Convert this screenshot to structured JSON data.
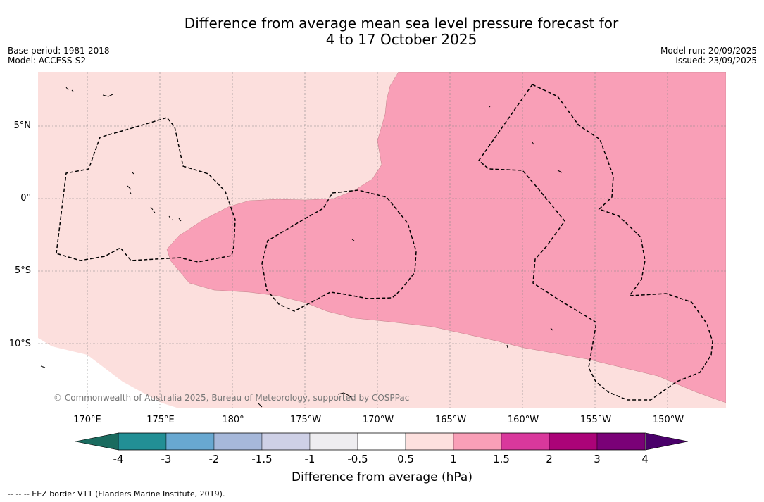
{
  "title": {
    "line1": "Difference from average mean sea level pressure forecast for",
    "line2": "4 to 17 October 2025"
  },
  "meta_left": {
    "base_period": "Base period: 1981-2018",
    "model": "Model: ACCESS-S2"
  },
  "meta_right": {
    "model_run": "Model run: 20/09/2025",
    "issued": "Issued: 23/09/2025"
  },
  "map": {
    "lat_labels": [
      "5°N",
      "0°",
      "5°S",
      "10°S"
    ],
    "lon_labels": [
      "170°E",
      "175°E",
      "180°",
      "175°W",
      "170°W",
      "165°W",
      "160°W",
      "155°W",
      "150°W"
    ],
    "copyright": "© Commonwealth of Australia 2025, Bureau of Meteorology, supported by COSPPac",
    "colors": {
      "band_0_5_to_1": "#fcdfdd",
      "band_1_to_1_5": "#f99fb7",
      "coast": "#000000",
      "grid": "#888888"
    }
  },
  "colorbar": {
    "title": "Difference from average (hPa)",
    "tick_labels": [
      "-4",
      "-3",
      "-2",
      "-1.5",
      "-1",
      "-0.5",
      "0.5",
      "1",
      "1.5",
      "2",
      "3",
      "4"
    ],
    "colors": [
      "#1a6b5f",
      "#228f95",
      "#68a8d1",
      "#a6b8da",
      "#ced0e6",
      "#eeedf0",
      "#ffffff",
      "#fde0de",
      "#f99fb7",
      "#d9389c",
      "#ab0378",
      "#7a0177",
      "#4a006a"
    ]
  },
  "footer": "--  --  -- EEZ border V11 (Flanders Marine Institute, 2019)."
}
